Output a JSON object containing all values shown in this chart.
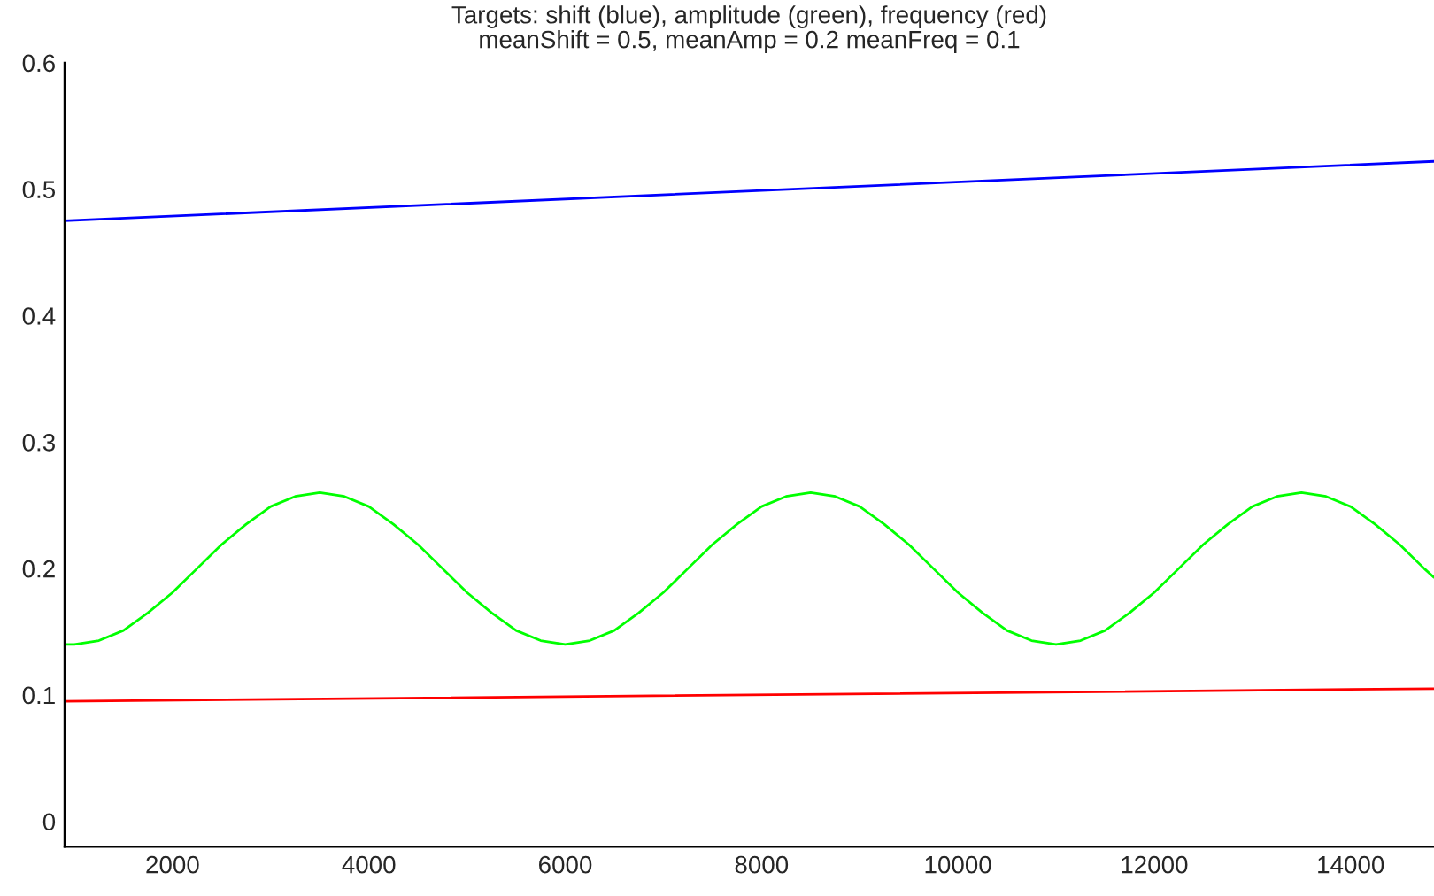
{
  "chart_data": {
    "type": "line",
    "title": "Targets: shift (blue), amplitude (green), frequency (red)",
    "subtitle": "meanShift = 0.5, meanAmp = 0.2 meanFreq = 0.1",
    "xlim": [
      900,
      14850
    ],
    "ylim": [
      -0.02,
      0.6
    ],
    "xticks": [
      2000,
      4000,
      6000,
      8000,
      10000,
      12000,
      14000
    ],
    "yticks": [
      0,
      0.1,
      0.2,
      0.3,
      0.4,
      0.5,
      0.6
    ],
    "grid": false,
    "marker": "none",
    "line_style": "solid",
    "series": [
      {
        "color": "#0000ff",
        "x": [
          900,
          14850
        ],
        "values": [
          0.475,
          0.522
        ]
      },
      {
        "color": "#00ff00",
        "x": [
          900,
          1000,
          1250,
          1500,
          1750,
          2000,
          2250,
          2500,
          2750,
          3000,
          3250,
          3500,
          3750,
          4000,
          4250,
          4500,
          4750,
          5000,
          5250,
          5500,
          5750,
          6000,
          6250,
          6500,
          6750,
          7000,
          7250,
          7500,
          7750,
          8000,
          8250,
          8500,
          8750,
          9000,
          9250,
          9500,
          9750,
          10000,
          10250,
          10500,
          10750,
          11000,
          11250,
          11500,
          11750,
          12000,
          12250,
          12500,
          12750,
          13000,
          13250,
          13500,
          13750,
          14000,
          14250,
          14500,
          14750,
          14850
        ],
        "values": [
          0.14,
          0.14,
          0.143,
          0.151,
          0.165,
          0.181,
          0.2,
          0.219,
          0.235,
          0.249,
          0.257,
          0.26,
          0.257,
          0.249,
          0.235,
          0.219,
          0.2,
          0.181,
          0.165,
          0.151,
          0.143,
          0.14,
          0.143,
          0.151,
          0.165,
          0.181,
          0.2,
          0.219,
          0.235,
          0.249,
          0.257,
          0.26,
          0.257,
          0.249,
          0.235,
          0.219,
          0.2,
          0.181,
          0.165,
          0.151,
          0.143,
          0.14,
          0.143,
          0.151,
          0.165,
          0.181,
          0.2,
          0.219,
          0.235,
          0.249,
          0.257,
          0.26,
          0.257,
          0.249,
          0.235,
          0.219,
          0.2,
          0.193
        ]
      },
      {
        "color": "#ff0000",
        "x": [
          900,
          14850
        ],
        "values": [
          0.095,
          0.105
        ]
      }
    ]
  }
}
